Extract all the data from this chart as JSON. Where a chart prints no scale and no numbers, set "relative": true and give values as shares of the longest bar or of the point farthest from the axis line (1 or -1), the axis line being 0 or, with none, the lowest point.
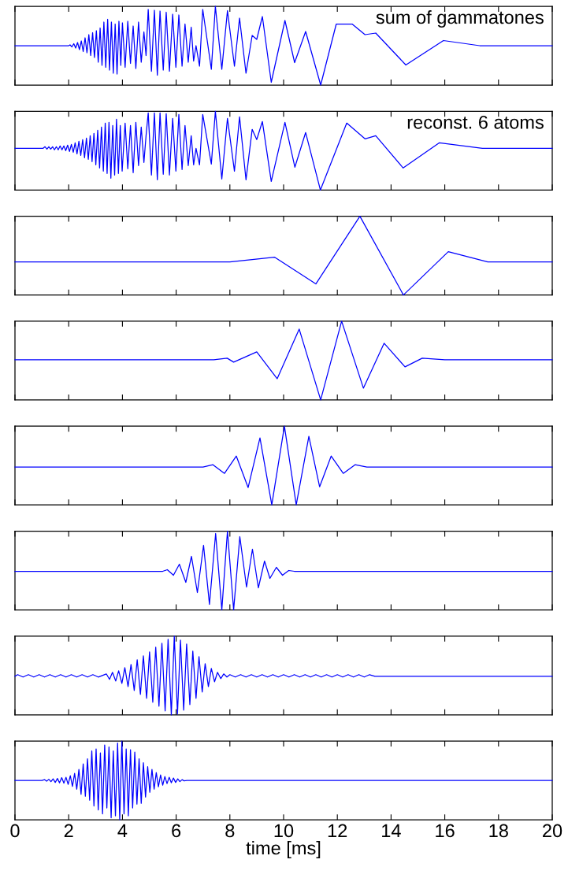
{
  "chart_data": [
    {
      "type": "line",
      "relative": true,
      "color": "#0000ff",
      "annotations": [
        "sum of gammatones"
      ],
      "xlim": [
        0,
        20
      ],
      "xticks": [
        0,
        2,
        4,
        6,
        8,
        10,
        12,
        14,
        16,
        18,
        20
      ],
      "tick_labels": false,
      "x": [
        0,
        2.0,
        2.05,
        2.12,
        2.19,
        2.26,
        2.33,
        2.4,
        2.47,
        2.54,
        2.61,
        2.68,
        2.75,
        2.82,
        2.89,
        2.96,
        3.03,
        3.1,
        3.17,
        3.24,
        3.31,
        3.38,
        3.45,
        3.52,
        3.59,
        3.66,
        3.73,
        3.8,
        3.87,
        3.94,
        4.0,
        4.1,
        4.2,
        4.3,
        4.4,
        4.5,
        4.6,
        4.7,
        4.8,
        4.88,
        4.96,
        5.08,
        5.19,
        5.3,
        5.4,
        5.52,
        5.63,
        5.75,
        5.87,
        5.99,
        6.1,
        6.22,
        6.33,
        6.45,
        6.56,
        6.65,
        6.74,
        6.87,
        6.99,
        7.31,
        7.46,
        7.7,
        7.91,
        8.17,
        8.36,
        8.6,
        8.83,
        9.0,
        9.21,
        9.54,
        10.05,
        10.41,
        10.82,
        11.38,
        11.96,
        12.55,
        13.03,
        13.43,
        14.55,
        15.95,
        17.3,
        20
      ],
      "values": [
        0.5,
        0.5,
        0.51,
        0.485,
        0.525,
        0.47,
        0.54,
        0.45,
        0.56,
        0.425,
        0.6,
        0.41,
        0.64,
        0.375,
        0.665,
        0.35,
        0.69,
        0.29,
        0.725,
        0.25,
        0.8,
        0.225,
        0.835,
        0.19,
        0.8,
        0.15,
        0.775,
        0.14,
        0.81,
        0.25,
        0.79,
        0.225,
        0.81,
        0.275,
        0.75,
        0.21,
        0.8,
        0.29,
        0.675,
        0.375,
        0.96,
        0.175,
        0.95,
        0.125,
        0.94,
        0.19,
        0.925,
        0.175,
        0.9,
        0.225,
        0.89,
        0.24,
        0.775,
        0.29,
        0.735,
        0.305,
        0.5,
        0.24,
        0.96,
        0.2,
        1.0,
        0.2,
        0.945,
        0.24,
        0.85,
        0.15,
        0.63,
        0.58,
        0.87,
        0.035,
        0.82,
        0.285,
        0.68,
        0.0,
        0.775,
        0.775,
        0.64,
        0.66,
        0.255,
        0.565,
        0.5,
        0.5
      ]
    },
    {
      "type": "line",
      "relative": true,
      "color": "#0000ff",
      "annotations": [
        "reconst. 6 atoms"
      ],
      "xlim": [
        0,
        20
      ],
      "xticks": [
        0,
        2,
        4,
        6,
        8,
        10,
        12,
        14,
        16,
        18,
        20
      ],
      "tick_labels": false,
      "x": [
        0,
        1.05,
        1.12,
        1.19,
        1.26,
        1.33,
        1.4,
        1.47,
        1.54,
        1.61,
        1.68,
        1.75,
        1.82,
        1.89,
        1.96,
        2.03,
        2.1,
        2.17,
        2.24,
        2.31,
        2.38,
        2.45,
        2.52,
        2.59,
        2.66,
        2.73,
        2.8,
        2.87,
        2.94,
        3.01,
        3.08,
        3.15,
        3.22,
        3.29,
        3.36,
        3.43,
        3.5,
        3.57,
        3.64,
        3.71,
        3.78,
        3.85,
        3.92,
        3.99,
        4.1,
        4.2,
        4.3,
        4.4,
        4.5,
        4.6,
        4.7,
        4.8,
        4.88,
        4.96,
        5.08,
        5.19,
        5.3,
        5.4,
        5.52,
        5.63,
        5.75,
        5.87,
        5.99,
        6.1,
        6.22,
        6.33,
        6.45,
        6.56,
        6.65,
        6.74,
        6.87,
        6.99,
        7.31,
        7.46,
        7.7,
        7.91,
        8.17,
        8.36,
        8.6,
        8.83,
        9.0,
        9.21,
        9.54,
        10.05,
        10.42,
        10.82,
        11.37,
        12.35,
        13.03,
        13.43,
        14.45,
        15.8,
        17.4,
        20
      ],
      "values": [
        0.53,
        0.53,
        0.55,
        0.52,
        0.55,
        0.52,
        0.55,
        0.51,
        0.55,
        0.51,
        0.56,
        0.51,
        0.56,
        0.5,
        0.57,
        0.49,
        0.58,
        0.48,
        0.6,
        0.46,
        0.62,
        0.44,
        0.64,
        0.41,
        0.66,
        0.39,
        0.69,
        0.36,
        0.72,
        0.32,
        0.76,
        0.28,
        0.8,
        0.24,
        0.85,
        0.21,
        0.86,
        0.15,
        0.82,
        0.19,
        0.9,
        0.21,
        0.82,
        0.24,
        0.85,
        0.27,
        0.82,
        0.22,
        0.86,
        0.31,
        0.8,
        0.35,
        0.69,
        0.98,
        0.19,
        0.98,
        0.13,
        0.98,
        0.2,
        0.97,
        0.19,
        0.91,
        0.24,
        0.96,
        0.26,
        0.82,
        0.31,
        0.69,
        0.32,
        0.53,
        0.32,
        0.96,
        0.33,
        1.0,
        0.14,
        0.91,
        0.24,
        0.93,
        0.13,
        0.77,
        0.64,
        0.87,
        0.11,
        0.86,
        0.29,
        0.73,
        0.0,
        0.85,
        0.65,
        0.69,
        0.28,
        0.6,
        0.53,
        0.53
      ]
    },
    {
      "type": "line",
      "relative": true,
      "color": "#0000ff",
      "xlim": [
        0,
        20
      ],
      "xticks": [
        0,
        2,
        4,
        6,
        8,
        10,
        12,
        14,
        16,
        18,
        20
      ],
      "tick_labels": false,
      "x": [
        0,
        8.0,
        9.66,
        11.2,
        12.84,
        14.46,
        16.13,
        17.6,
        20
      ],
      "values": [
        0.42,
        0.42,
        0.48,
        0.14,
        1.0,
        0.0,
        0.55,
        0.42,
        0.42
      ]
    },
    {
      "type": "line",
      "relative": true,
      "color": "#0000ff",
      "xlim": [
        0,
        20
      ],
      "xticks": [
        0,
        2,
        4,
        6,
        8,
        10,
        12,
        14,
        16,
        18,
        20
      ],
      "tick_labels": false,
      "x": [
        0,
        7.4,
        7.9,
        8.14,
        9.0,
        9.76,
        10.58,
        11.38,
        12.16,
        12.97,
        13.74,
        14.52,
        15.16,
        16,
        20
      ],
      "values": [
        0.51,
        0.51,
        0.53,
        0.48,
        0.61,
        0.27,
        0.9,
        0.0,
        1.0,
        0.15,
        0.72,
        0.42,
        0.53,
        0.51,
        0.51
      ]
    },
    {
      "type": "line",
      "relative": true,
      "color": "#0000ff",
      "xlim": [
        0,
        20
      ],
      "xticks": [
        0,
        2,
        4,
        6,
        8,
        10,
        12,
        14,
        16,
        18,
        20
      ],
      "tick_labels": false,
      "x": [
        0,
        7.0,
        7.37,
        7.8,
        8.24,
        8.68,
        9.12,
        9.56,
        10.03,
        10.47,
        10.94,
        11.34,
        11.77,
        12.22,
        12.66,
        13.1,
        20
      ],
      "values": [
        0.48,
        0.48,
        0.51,
        0.4,
        0.62,
        0.22,
        0.85,
        0.0,
        1.0,
        0.0,
        0.87,
        0.23,
        0.62,
        0.4,
        0.51,
        0.48,
        0.48
      ]
    },
    {
      "type": "line",
      "relative": true,
      "color": "#0000ff",
      "xlim": [
        0,
        20
      ],
      "xticks": [
        0,
        2,
        4,
        6,
        8,
        10,
        12,
        14,
        16,
        18,
        20
      ],
      "tick_labels": false,
      "x": [
        0,
        5.5,
        5.67,
        5.9,
        6.12,
        6.36,
        6.57,
        6.79,
        7.02,
        7.24,
        7.47,
        7.7,
        7.91,
        8.14,
        8.37,
        8.62,
        8.84,
        9.06,
        9.29,
        9.49,
        9.73,
        9.96,
        10.19,
        10.4,
        20
      ],
      "values": [
        0.49,
        0.49,
        0.51,
        0.44,
        0.58,
        0.35,
        0.68,
        0.22,
        0.82,
        0.07,
        0.97,
        0.0,
        1.0,
        0.0,
        0.93,
        0.29,
        0.77,
        0.28,
        0.62,
        0.4,
        0.54,
        0.44,
        0.5,
        0.49,
        0.49
      ]
    },
    {
      "type": "line",
      "relative": true,
      "color": "#0000ff",
      "xlim": [
        0,
        20
      ],
      "xticks": [
        0,
        2,
        4,
        6,
        8,
        10,
        12,
        14,
        16,
        18,
        20
      ],
      "tick_labels": false,
      "x": [
        0,
        0.1,
        0.3,
        0.5,
        0.7,
        0.9,
        1.1,
        1.3,
        1.5,
        1.7,
        1.9,
        2.1,
        2.3,
        2.5,
        2.7,
        2.9,
        3.1,
        3.4,
        3.52,
        3.63,
        3.75,
        3.86,
        3.98,
        4.09,
        4.21,
        4.32,
        4.44,
        4.55,
        4.67,
        4.78,
        4.9,
        5.01,
        5.13,
        5.24,
        5.36,
        5.47,
        5.59,
        5.7,
        5.82,
        5.93,
        6.05,
        6.16,
        6.28,
        6.39,
        6.51,
        6.62,
        6.74,
        6.85,
        6.97,
        7.08,
        7.2,
        7.31,
        7.43,
        7.54,
        7.66,
        7.77,
        7.89,
        8.0,
        8.2,
        8.4,
        8.6,
        8.8,
        9.0,
        9.2,
        9.4,
        9.6,
        9.8,
        10.0,
        10.2,
        10.4,
        10.6,
        10.8,
        11.0,
        11.2,
        11.4,
        11.6,
        11.8,
        12.0,
        12.2,
        12.4,
        12.6,
        12.8,
        13.0,
        13.2,
        13.4,
        20
      ],
      "values": [
        0.49,
        0.51,
        0.48,
        0.51,
        0.48,
        0.51,
        0.48,
        0.51,
        0.48,
        0.51,
        0.48,
        0.51,
        0.48,
        0.51,
        0.48,
        0.51,
        0.48,
        0.52,
        0.45,
        0.54,
        0.43,
        0.56,
        0.4,
        0.6,
        0.36,
        0.64,
        0.31,
        0.7,
        0.26,
        0.75,
        0.21,
        0.8,
        0.16,
        0.86,
        0.11,
        0.91,
        0.05,
        0.96,
        0.0,
        1.0,
        0.01,
        0.95,
        0.06,
        0.9,
        0.13,
        0.81,
        0.21,
        0.74,
        0.29,
        0.65,
        0.36,
        0.59,
        0.42,
        0.54,
        0.46,
        0.52,
        0.48,
        0.51,
        0.48,
        0.51,
        0.48,
        0.51,
        0.48,
        0.51,
        0.48,
        0.51,
        0.48,
        0.51,
        0.48,
        0.51,
        0.48,
        0.51,
        0.48,
        0.51,
        0.48,
        0.51,
        0.48,
        0.51,
        0.48,
        0.51,
        0.48,
        0.51,
        0.48,
        0.51,
        0.49,
        0.49
      ]
    },
    {
      "type": "line",
      "relative": true,
      "color": "#0000ff",
      "xlim": [
        0,
        20
      ],
      "xticks": [
        0,
        2,
        4,
        6,
        8,
        10,
        12,
        14,
        16,
        18,
        20
      ],
      "tick_labels": "x",
      "xlabel": "time [ms]",
      "x": [
        0,
        1.0,
        1.1,
        1.18,
        1.26,
        1.34,
        1.42,
        1.5,
        1.58,
        1.66,
        1.74,
        1.82,
        1.9,
        1.98,
        2.06,
        2.14,
        2.22,
        2.3,
        2.38,
        2.46,
        2.54,
        2.62,
        2.7,
        2.78,
        2.86,
        2.94,
        3.02,
        3.1,
        3.18,
        3.26,
        3.34,
        3.42,
        3.5,
        3.58,
        3.66,
        3.74,
        3.82,
        3.9,
        3.98,
        4.06,
        4.14,
        4.22,
        4.3,
        4.38,
        4.46,
        4.54,
        4.62,
        4.7,
        4.78,
        4.86,
        4.94,
        5.02,
        5.1,
        5.18,
        5.26,
        5.34,
        5.42,
        5.5,
        5.58,
        5.66,
        5.74,
        5.82,
        5.9,
        5.98,
        6.06,
        6.14,
        6.22,
        6.3,
        6.4,
        20
      ],
      "values": [
        0.5,
        0.5,
        0.51,
        0.49,
        0.515,
        0.485,
        0.52,
        0.475,
        0.525,
        0.47,
        0.535,
        0.465,
        0.54,
        0.45,
        0.56,
        0.425,
        0.59,
        0.39,
        0.64,
        0.325,
        0.71,
        0.3,
        0.775,
        0.25,
        0.875,
        0.175,
        0.9,
        0.125,
        0.85,
        0.075,
        0.95,
        0.15,
        0.925,
        0.025,
        0.875,
        0.05,
        0.975,
        0.0,
        1.0,
        0.075,
        0.9,
        0.05,
        0.89,
        0.15,
        0.86,
        0.2,
        0.775,
        0.21,
        0.725,
        0.29,
        0.675,
        0.35,
        0.64,
        0.39,
        0.6,
        0.42,
        0.57,
        0.44,
        0.55,
        0.46,
        0.54,
        0.47,
        0.53,
        0.475,
        0.52,
        0.485,
        0.51,
        0.495,
        0.5,
        0.5
      ]
    }
  ]
}
